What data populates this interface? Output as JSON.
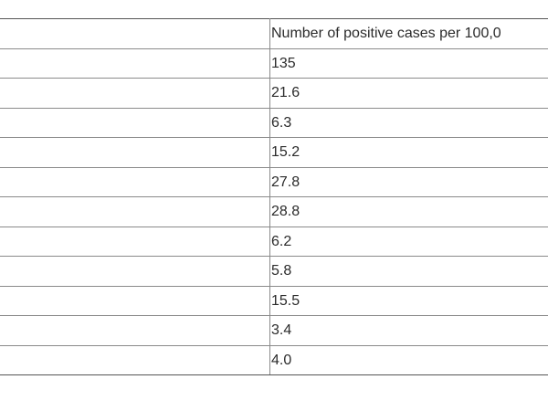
{
  "table": {
    "header": "Number of positive cases per 100,0",
    "rows": [
      "135",
      "21.6",
      "6.3",
      "15.2",
      "27.8",
      "28.8",
      "6.2",
      "5.8",
      "15.5",
      "3.4",
      "4.0"
    ]
  }
}
